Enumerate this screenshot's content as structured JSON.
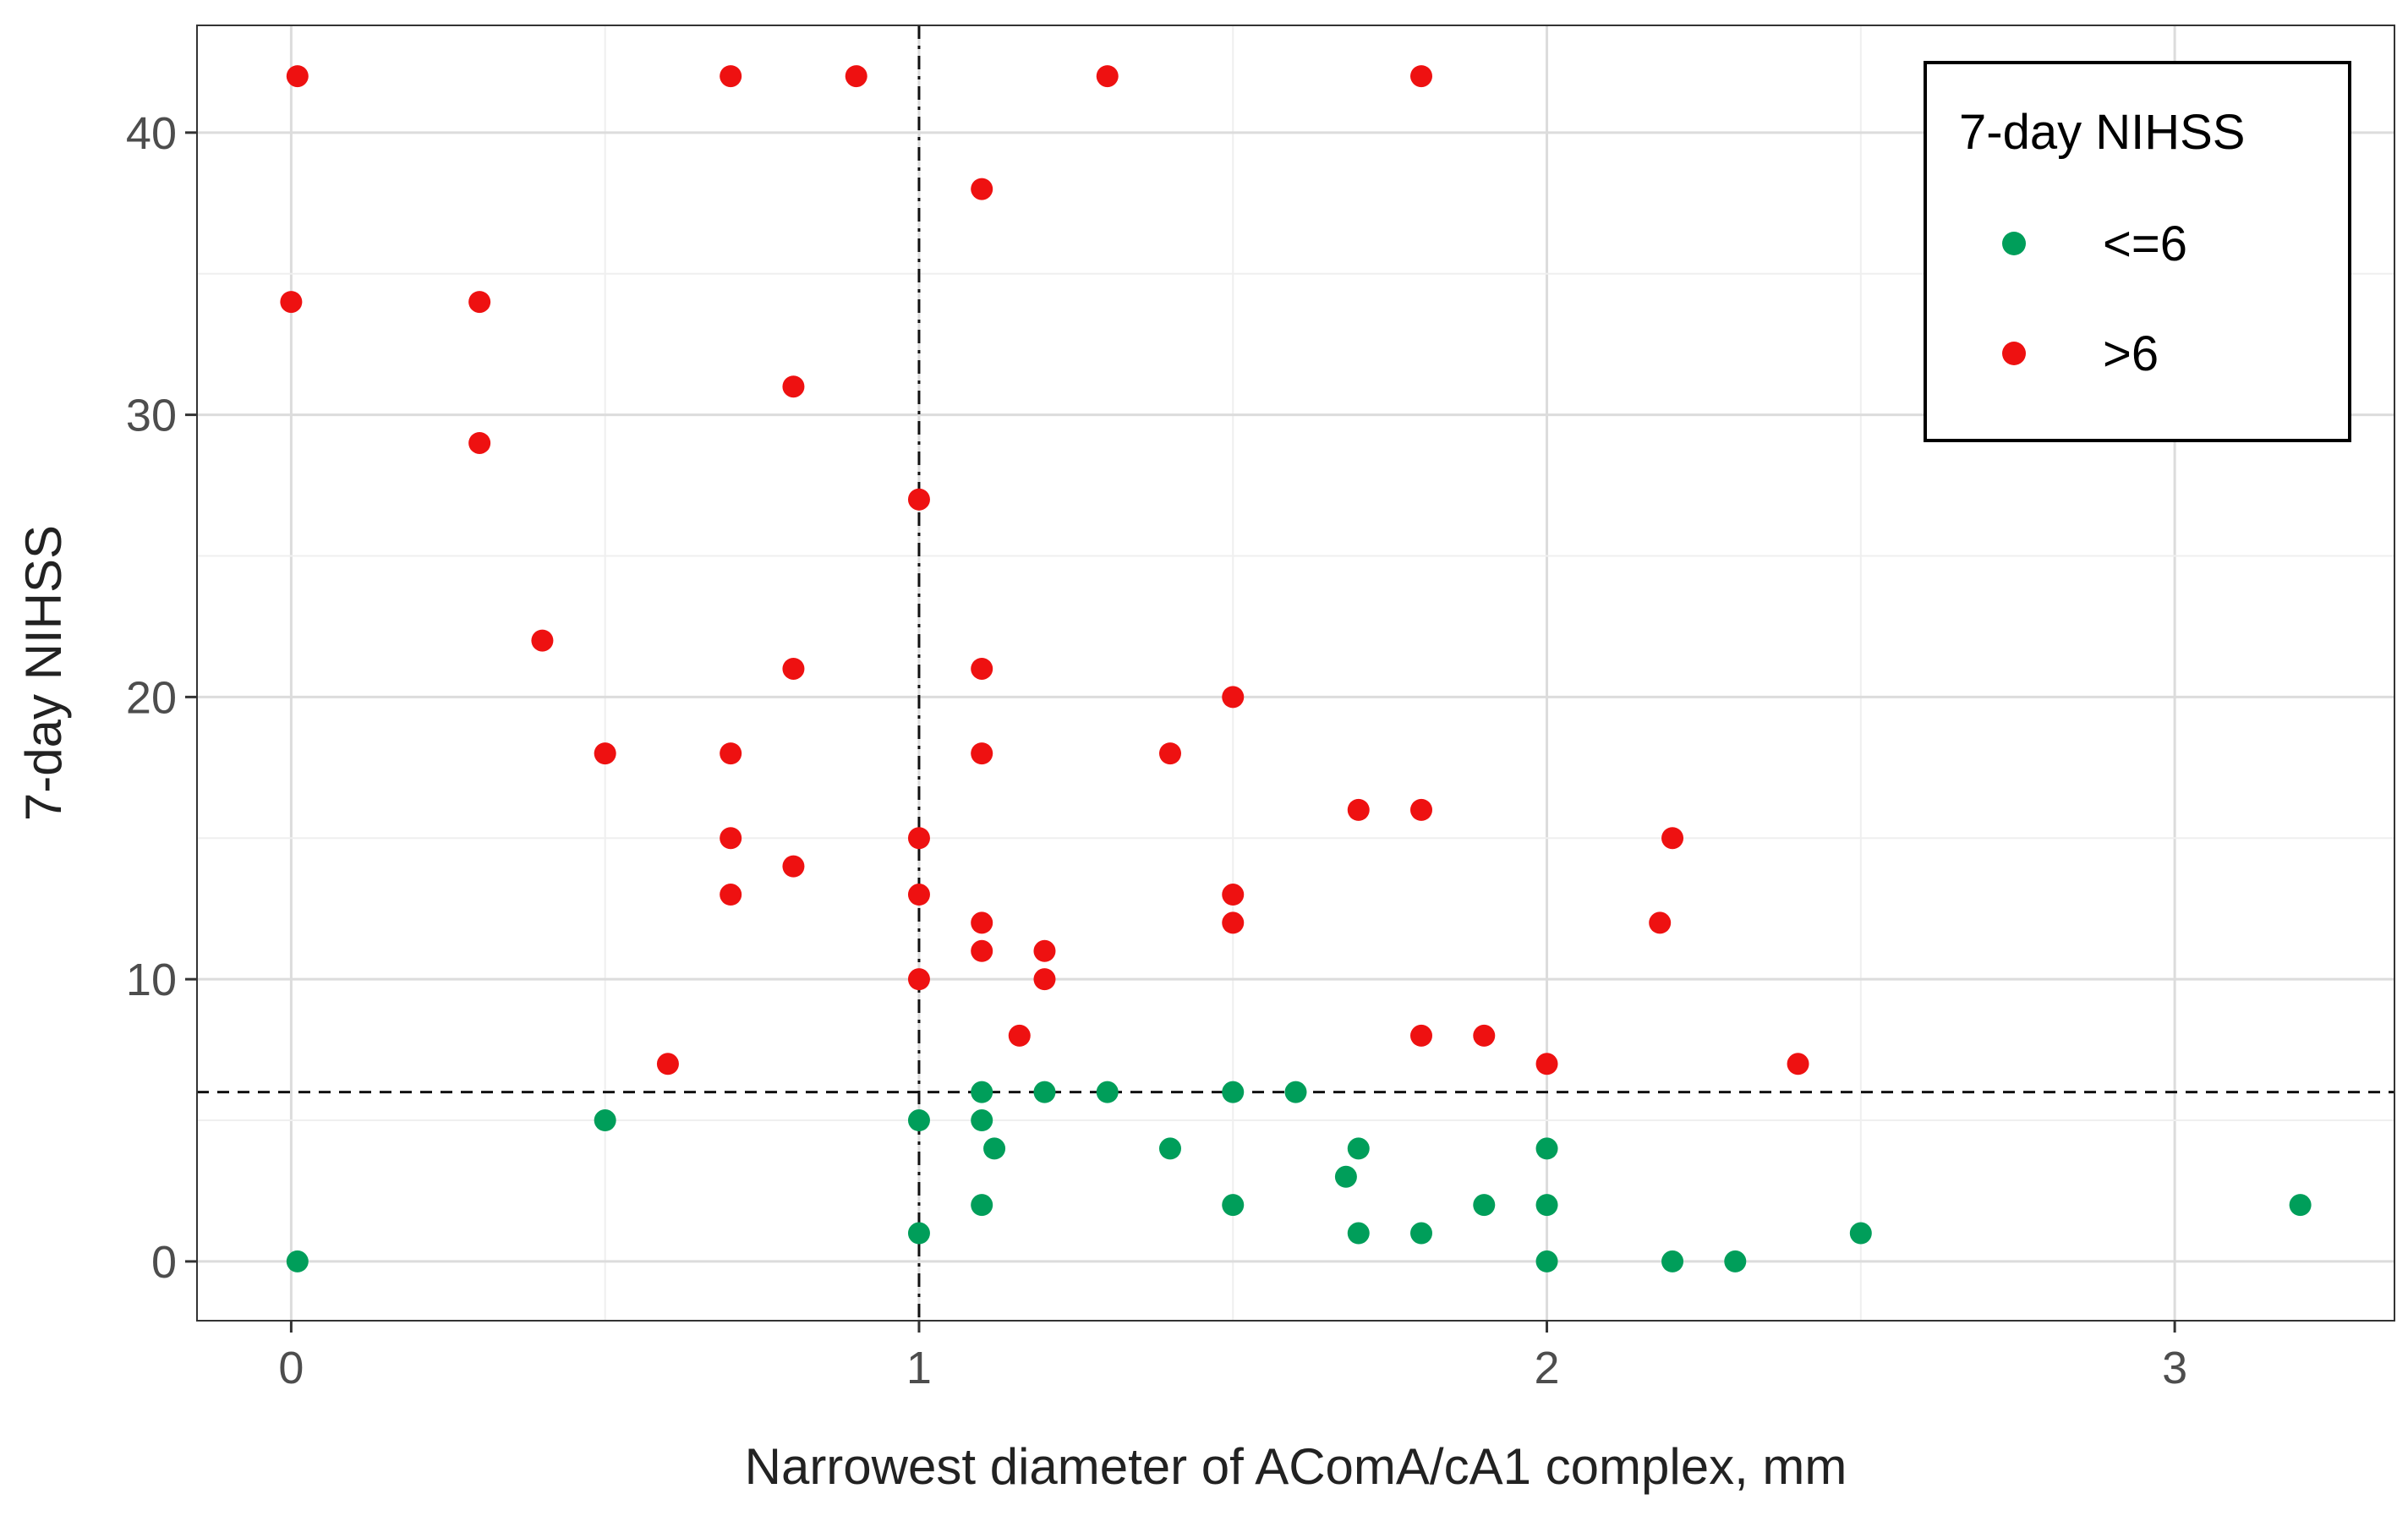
{
  "chart_data": {
    "type": "scatter",
    "xlabel": "Narrowest diameter of AComA/cA1 complex, mm",
    "ylabel": "7-day NIHSS",
    "xlim": [
      -0.15,
      3.35
    ],
    "ylim": [
      -2.1,
      43.8
    ],
    "x_ticks": [
      0,
      1,
      2,
      3
    ],
    "y_ticks": [
      0,
      10,
      20,
      30,
      40
    ],
    "grid": true,
    "legend": {
      "title": "7-day NIHSS",
      "position": "top-right"
    },
    "reference_lines": [
      {
        "orientation": "vertical",
        "value": 1,
        "style": "dash-dot"
      },
      {
        "orientation": "horizontal",
        "value": 6,
        "style": "dashed"
      }
    ],
    "series": [
      {
        "name": "<=6",
        "color": "#009E5A",
        "points": [
          [
            0.01,
            0
          ],
          [
            0.5,
            5
          ],
          [
            1.0,
            5
          ],
          [
            1.0,
            1
          ],
          [
            1.1,
            6
          ],
          [
            1.1,
            5
          ],
          [
            1.12,
            4
          ],
          [
            1.1,
            2
          ],
          [
            1.2,
            6
          ],
          [
            1.3,
            6
          ],
          [
            1.4,
            4
          ],
          [
            1.5,
            6
          ],
          [
            1.5,
            2
          ],
          [
            1.6,
            6
          ],
          [
            1.68,
            3
          ],
          [
            1.7,
            4
          ],
          [
            1.7,
            1
          ],
          [
            1.8,
            1
          ],
          [
            1.9,
            2
          ],
          [
            2.0,
            4
          ],
          [
            2.0,
            2
          ],
          [
            2.0,
            0
          ],
          [
            2.2,
            0
          ],
          [
            2.3,
            0
          ],
          [
            2.5,
            1
          ],
          [
            3.2,
            2
          ]
        ]
      },
      {
        "name": ">6",
        "color": "#EE1111",
        "points": [
          [
            0.01,
            42
          ],
          [
            0.7,
            42
          ],
          [
            0.9,
            42
          ],
          [
            1.3,
            42
          ],
          [
            1.8,
            42
          ],
          [
            1.1,
            38
          ],
          [
            0.0,
            34
          ],
          [
            0.3,
            34
          ],
          [
            0.8,
            31
          ],
          [
            0.3,
            29
          ],
          [
            1.0,
            27
          ],
          [
            0.4,
            22
          ],
          [
            0.8,
            21
          ],
          [
            1.1,
            21
          ],
          [
            1.5,
            20
          ],
          [
            0.5,
            18
          ],
          [
            0.7,
            18
          ],
          [
            1.1,
            18
          ],
          [
            1.4,
            18
          ],
          [
            1.7,
            16
          ],
          [
            1.8,
            16
          ],
          [
            0.7,
            15
          ],
          [
            1.0,
            15
          ],
          [
            2.2,
            15
          ],
          [
            0.8,
            14
          ],
          [
            0.7,
            13
          ],
          [
            1.0,
            13
          ],
          [
            1.5,
            13
          ],
          [
            1.1,
            12
          ],
          [
            1.5,
            12
          ],
          [
            2.18,
            12
          ],
          [
            1.1,
            11
          ],
          [
            1.2,
            11
          ],
          [
            1.0,
            10
          ],
          [
            1.2,
            10
          ],
          [
            1.16,
            8
          ],
          [
            1.8,
            8
          ],
          [
            1.9,
            8
          ],
          [
            0.6,
            7
          ],
          [
            2.0,
            7
          ],
          [
            2.4,
            7
          ]
        ]
      }
    ]
  }
}
